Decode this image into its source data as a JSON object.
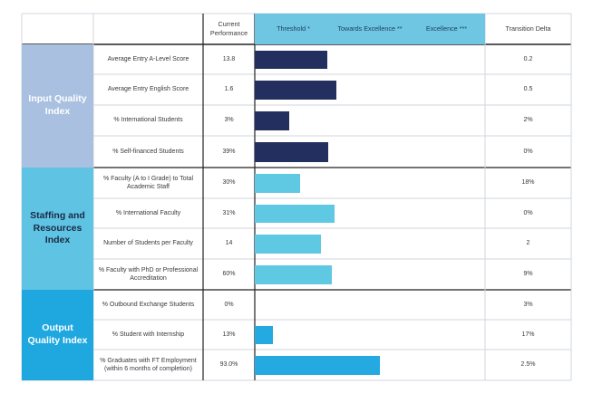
{
  "headers": {
    "current": "Current Performance",
    "threshold": "Threshold *",
    "towards": "Towards Excellence **",
    "excellence": "Excellence ***",
    "delta": "Transition Delta"
  },
  "colors": {
    "input_bar": "#232f5e",
    "staffing_bar": "#5fc8e2",
    "output_bar": "#24a9e0",
    "input_group": "#a9c0e0",
    "staffing_group": "#5fc3e4",
    "output_group": "#1fa8df",
    "header_band": "#6ec6e3"
  },
  "groups": [
    {
      "label": "Input Quality Index",
      "rows": [
        0,
        1,
        2,
        3
      ]
    },
    {
      "label": "Staffing and Resources Index",
      "rows": [
        4,
        5,
        6,
        7
      ]
    },
    {
      "label": "Output Quality Index",
      "rows": [
        8,
        9,
        10
      ]
    }
  ],
  "chart_data": {
    "type": "bar",
    "orientation": "horizontal",
    "categories": [
      "Average Entry A-Level Score",
      "Average Entry English Score",
      "% International Students",
      "% Self-financed Students",
      "% Faculty (A to I Grade) to Total Academic Staff",
      "% International Faculty",
      "Number of Students per Faculty",
      "% Faculty with PhD or Professional Accreditation",
      "% Outbound Exchange Students",
      "% Student with Internship",
      "% Graduates with FT Employment (within 6 months of completion)"
    ],
    "current_performance": [
      "13.8",
      "1.6",
      "3%",
      "39%",
      "30%",
      "31%",
      "14",
      "60%",
      "0%",
      "13%",
      "93.0%"
    ],
    "transition_delta": [
      "0.2",
      "0.5",
      "2%",
      "0%",
      "18%",
      "0%",
      "2",
      "9%",
      "3%",
      "17%",
      "2.5%"
    ],
    "progress_fraction_of_threshold": [
      0.95,
      1.07,
      0.45,
      0.97,
      0.6,
      1.05,
      0.87,
      1.01,
      0.0,
      0.24,
      1.64
    ],
    "bar_group": [
      "input",
      "input",
      "input",
      "input",
      "staffing",
      "staffing",
      "staffing",
      "staffing",
      "output",
      "output",
      "output"
    ]
  }
}
